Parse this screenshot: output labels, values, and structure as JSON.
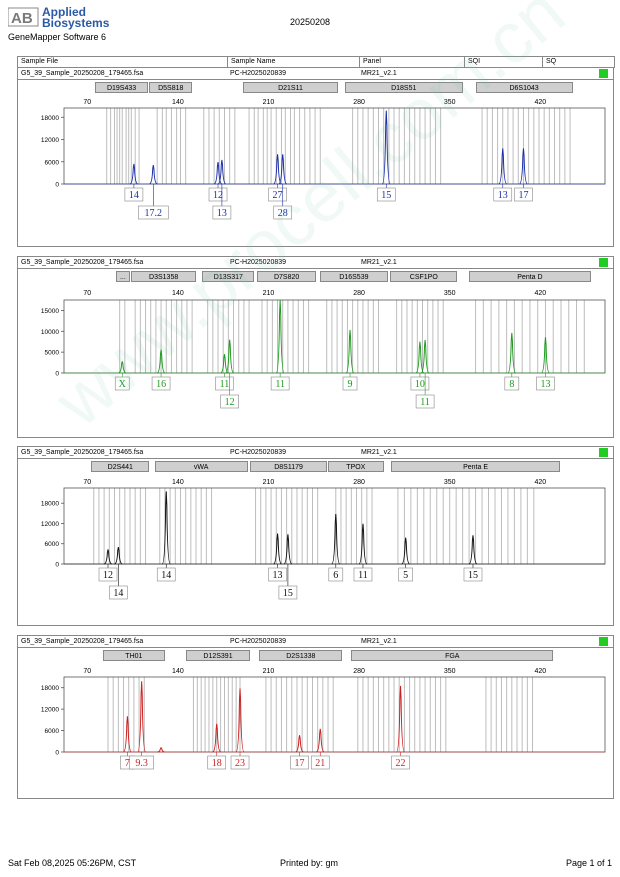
{
  "header": {
    "brand_line1": "Applied",
    "brand_line2": "Biosystems",
    "logo_letters": "AB",
    "software": "GeneMapper Software 6",
    "date_code": "20250208"
  },
  "columns": [
    "Sample File",
    "Sample Name",
    "Panel",
    "SQI",
    "SQ"
  ],
  "watermark": "www.procell.com.cn",
  "footer": {
    "printed_at": "Sat Feb 08,2025 05:26PM, CST",
    "printed_by": "Printed by: gm",
    "page": "Page 1 of 1"
  },
  "chart_data": [
    {
      "type": "electropherogram",
      "sample_file": "G5_39_Sample_20250208_179465.fsa",
      "sample_name": "PC-H2025020839",
      "panel": "MR21_v2.1",
      "dye_color": "#1b2fa8",
      "x_ticks": [
        70,
        140,
        210,
        280,
        350,
        420
      ],
      "xlim": [
        52,
        470
      ],
      "y_ticks": [
        0,
        6000,
        12000,
        18000
      ],
      "ylim": [
        0,
        20500
      ],
      "markers": [
        {
          "name": "D19S433",
          "start": 76,
          "end": 117
        },
        {
          "name": "D5S818",
          "start": 118,
          "end": 151
        },
        {
          "name": "D21S11",
          "start": 190,
          "end": 264
        },
        {
          "name": "D18S51",
          "start": 269,
          "end": 360
        },
        {
          "name": "D6S1043",
          "start": 370,
          "end": 445
        }
      ],
      "bins": [
        [
          85,
          88,
          91,
          93,
          95,
          97,
          100,
          102,
          104,
          107,
          110
        ],
        [
          124,
          128,
          131,
          135,
          139,
          142,
          146
        ],
        [
          160,
          164,
          168,
          172,
          176,
          180,
          184
        ],
        [
          195,
          199,
          202,
          206,
          209,
          212,
          216,
          220,
          223,
          227,
          230,
          234,
          238,
          242,
          246,
          250
        ],
        [
          275,
          279,
          283,
          287,
          291,
          295,
          299,
          303,
          307,
          311,
          315,
          319,
          323,
          327,
          331,
          335,
          339,
          343
        ],
        [
          375,
          379,
          383,
          387,
          391,
          395,
          399,
          403,
          407,
          411,
          415,
          419,
          423,
          427,
          431,
          435,
          439,
          443
        ]
      ],
      "peaks": [
        {
          "x": 106,
          "height": 5400,
          "allele": "14",
          "row": 0
        },
        {
          "x": 121,
          "height": 5100,
          "allele": "17.2",
          "row": 1
        },
        {
          "x": 171,
          "height": 5900,
          "allele": "12",
          "row": 0
        },
        {
          "x": 174,
          "height": 6500,
          "allele": "13",
          "row": 1
        },
        {
          "x": 217,
          "height": 8000,
          "allele": "27",
          "row": 0
        },
        {
          "x": 221,
          "height": 8000,
          "allele": "28",
          "row": 1
        },
        {
          "x": 301,
          "height": 19800,
          "allele": "15",
          "row": 0
        },
        {
          "x": 391,
          "height": 9600,
          "allele": "13",
          "row": 0
        },
        {
          "x": 407,
          "height": 9600,
          "allele": "17",
          "row": 0
        }
      ]
    },
    {
      "type": "electropherogram",
      "sample_file": "G5_39_Sample_20250208_179465.fsa",
      "sample_name": "PC-H2025020839",
      "panel": "MR21_v2.1",
      "dye_color": "#1e9a1e",
      "x_ticks": [
        70,
        140,
        210,
        280,
        350,
        420
      ],
      "xlim": [
        52,
        470
      ],
      "y_ticks": [
        0,
        5000,
        10000,
        15000
      ],
      "ylim": [
        0,
        17500
      ],
      "markers": [
        {
          "name": "...",
          "start": 92,
          "end": 103
        },
        {
          "name": "D3S1358",
          "start": 104,
          "end": 154
        },
        {
          "name": "D13S317",
          "start": 159,
          "end": 199
        },
        {
          "name": "D7S820",
          "start": 201,
          "end": 247
        },
        {
          "name": "D16S539",
          "start": 250,
          "end": 302
        },
        {
          "name": "CSF1PO",
          "start": 304,
          "end": 356
        },
        {
          "name": "Penta D",
          "start": 365,
          "end": 459
        }
      ],
      "bins": [
        [
          95,
          99
        ],
        [
          107,
          111,
          115,
          119,
          123,
          127,
          131,
          135,
          139,
          143,
          147,
          151
        ],
        [
          163,
          167,
          171,
          175,
          179,
          183,
          187,
          191,
          195
        ],
        [
          205,
          209,
          213,
          217,
          221,
          225,
          229,
          233,
          237,
          241
        ],
        [
          255,
          259,
          263,
          267,
          271,
          275,
          279,
          283,
          287,
          291,
          295
        ],
        [
          309,
          313,
          317,
          321,
          325,
          329,
          333,
          337,
          341,
          345
        ],
        [
          370,
          376,
          382,
          388,
          394,
          400,
          406,
          412,
          418,
          424,
          430,
          436,
          442,
          448,
          454
        ]
      ],
      "peaks": [
        {
          "x": 97,
          "height": 2800,
          "allele": "X",
          "row": 0
        },
        {
          "x": 127,
          "height": 5600,
          "allele": "16",
          "row": 0
        },
        {
          "x": 176,
          "height": 4500,
          "allele": "11",
          "row": 0
        },
        {
          "x": 180,
          "height": 8000,
          "allele": "12",
          "row": 1
        },
        {
          "x": 219,
          "height": 17500,
          "allele": "11",
          "row": 0
        },
        {
          "x": 273,
          "height": 10300,
          "allele": "9",
          "row": 0
        },
        {
          "x": 327,
          "height": 7500,
          "allele": "10",
          "row": 0
        },
        {
          "x": 331,
          "height": 7900,
          "allele": "11",
          "row": 1
        },
        {
          "x": 398,
          "height": 9600,
          "allele": "8",
          "row": 0
        },
        {
          "x": 424,
          "height": 8600,
          "allele": "13",
          "row": 0
        }
      ]
    },
    {
      "type": "electropherogram",
      "sample_file": "G5_39_Sample_20250208_179465.fsa",
      "sample_name": "PC-H2025020839",
      "panel": "MR21_v2.1",
      "dye_color": "#111111",
      "x_ticks": [
        70,
        140,
        210,
        280,
        350,
        420
      ],
      "xlim": [
        52,
        470
      ],
      "y_ticks": [
        0,
        6000,
        12000,
        18000
      ],
      "ylim": [
        0,
        22500
      ],
      "markers": [
        {
          "name": "D2S441",
          "start": 73,
          "end": 118
        },
        {
          "name": "vWA",
          "start": 122,
          "end": 194
        },
        {
          "name": "D8S1179",
          "start": 196,
          "end": 255
        },
        {
          "name": "TPOX",
          "start": 256,
          "end": 299
        },
        {
          "name": "Penta E",
          "start": 305,
          "end": 435
        }
      ],
      "bins": [
        [
          75,
          79,
          83,
          87,
          91,
          95,
          99,
          103,
          107,
          111,
          115
        ],
        [
          126,
          130,
          134,
          138,
          142,
          146,
          150,
          154,
          158,
          162,
          166
        ],
        [
          200,
          204,
          208,
          212,
          216,
          220,
          224,
          228,
          232,
          236,
          240,
          244,
          248
        ],
        [
          262,
          266,
          270,
          274,
          278,
          282,
          286,
          290
        ],
        [
          310,
          315,
          320,
          325,
          330,
          335,
          340,
          345,
          350,
          355,
          360,
          365,
          370,
          375,
          380,
          385,
          390,
          395,
          400,
          405,
          410,
          415
        ]
      ],
      "peaks": [
        {
          "x": 86,
          "height": 4300,
          "allele": "12",
          "row": 0
        },
        {
          "x": 94,
          "height": 5000,
          "allele": "14",
          "row": 1
        },
        {
          "x": 131,
          "height": 21500,
          "allele": "14",
          "row": 0
        },
        {
          "x": 217,
          "height": 9000,
          "allele": "13",
          "row": 0
        },
        {
          "x": 225,
          "height": 8800,
          "allele": "15",
          "row": 1
        },
        {
          "x": 262,
          "height": 14800,
          "allele": "6",
          "row": 0
        },
        {
          "x": 283,
          "height": 11900,
          "allele": "11",
          "row": 0
        },
        {
          "x": 316,
          "height": 7800,
          "allele": "5",
          "row": 0
        },
        {
          "x": 368,
          "height": 8500,
          "allele": "15",
          "row": 0
        }
      ]
    },
    {
      "type": "electropherogram",
      "sample_file": "G5_39_Sample_20250208_179465.fsa",
      "sample_name": "PC-H2025020839",
      "panel": "MR21_v2.1",
      "dye_color": "#cc2020",
      "x_ticks": [
        70,
        140,
        210,
        280,
        350,
        420
      ],
      "xlim": [
        52,
        470
      ],
      "y_ticks": [
        0,
        6000,
        12000,
        18000
      ],
      "ylim": [
        0,
        21000
      ],
      "markers": [
        {
          "name": "TH01",
          "start": 82,
          "end": 130
        },
        {
          "name": "D12S391",
          "start": 146,
          "end": 196
        },
        {
          "name": "D2S1338",
          "start": 203,
          "end": 267
        },
        {
          "name": "FGA",
          "start": 274,
          "end": 430
        }
      ],
      "bins": [
        [
          86,
          90,
          94,
          98,
          102,
          106,
          110,
          114
        ],
        [
          152,
          155,
          158,
          161,
          164,
          167,
          170,
          173,
          176,
          179,
          182,
          185,
          188
        ],
        [
          208,
          212,
          216,
          220,
          224,
          228,
          232,
          236,
          240,
          244,
          248,
          252,
          256,
          260
        ],
        [
          279,
          283,
          287,
          291,
          295,
          299,
          303,
          307,
          311,
          315,
          319,
          323,
          327,
          331,
          335,
          339,
          343,
          347
        ],
        [
          378,
          382,
          386,
          390,
          394,
          398,
          402,
          406,
          410,
          414
        ]
      ],
      "peaks": [
        {
          "x": 101,
          "height": 10000,
          "allele": "7",
          "row": 0
        },
        {
          "x": 112,
          "height": 19800,
          "allele": "9.3",
          "row": 0
        },
        {
          "x": 127,
          "height": 1200,
          "allele": "",
          "row": 0
        },
        {
          "x": 170,
          "height": 7900,
          "allele": "18",
          "row": 0
        },
        {
          "x": 188,
          "height": 17800,
          "allele": "23",
          "row": 0
        },
        {
          "x": 234,
          "height": 4700,
          "allele": "17",
          "row": 0
        },
        {
          "x": 250,
          "height": 6500,
          "allele": "21",
          "row": 0
        },
        {
          "x": 312,
          "height": 18500,
          "allele": "22",
          "row": 0
        }
      ]
    }
  ]
}
